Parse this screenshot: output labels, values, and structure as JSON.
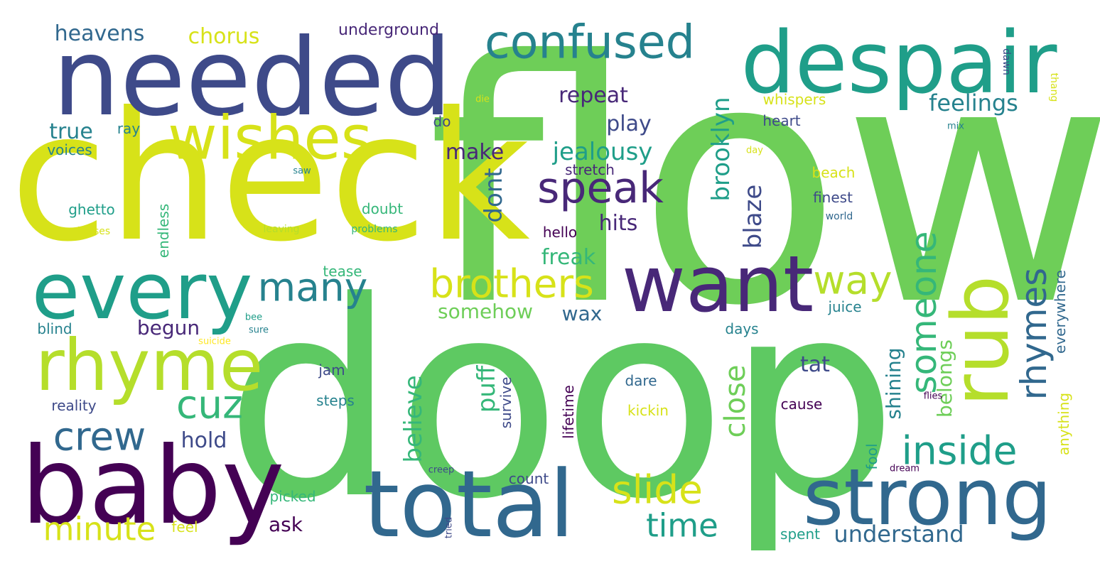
{
  "words": [
    {
      "text": "flow",
      "color": "#6ece58"
    },
    {
      "text": "doop",
      "color": "#5ec962"
    },
    {
      "text": "check",
      "color": "#d7e219"
    },
    {
      "text": "needed",
      "color": "#3e4a89"
    },
    {
      "text": "despair",
      "color": "#1f9e89"
    },
    {
      "text": "baby",
      "color": "#440154"
    },
    {
      "text": "total",
      "color": "#31688e"
    },
    {
      "text": "strong",
      "color": "#31688e"
    },
    {
      "text": "want",
      "color": "#482878"
    },
    {
      "text": "every",
      "color": "#1f9e89"
    },
    {
      "text": "rhyme",
      "color": "#b5de2b"
    },
    {
      "text": "wishes",
      "color": "#d7e219"
    },
    {
      "text": "rub",
      "color": "#b5de2b"
    },
    {
      "text": "confused",
      "color": "#26828e"
    },
    {
      "text": "speak",
      "color": "#482878"
    },
    {
      "text": "brothers",
      "color": "#d7e219"
    },
    {
      "text": "many",
      "color": "#26828e"
    },
    {
      "text": "cuz",
      "color": "#35b779"
    },
    {
      "text": "crew",
      "color": "#31688e"
    },
    {
      "text": "minute",
      "color": "#d7e219"
    },
    {
      "text": "slide",
      "color": "#d7e219"
    },
    {
      "text": "time",
      "color": "#1f9e89"
    },
    {
      "text": "inside",
      "color": "#1f9e89"
    },
    {
      "text": "way",
      "color": "#b5de2b"
    },
    {
      "text": "someone",
      "color": "#35b779"
    },
    {
      "text": "rhymes",
      "color": "#31688e"
    },
    {
      "text": "close",
      "color": "#6ece58"
    },
    {
      "text": "understand",
      "color": "#31688e"
    },
    {
      "text": "heavens",
      "color": "#31688e"
    },
    {
      "text": "chorus",
      "color": "#d7e219"
    },
    {
      "text": "underground",
      "color": "#482878"
    },
    {
      "text": "feelings",
      "color": "#26828e"
    },
    {
      "text": "repeat",
      "color": "#482878"
    },
    {
      "text": "play",
      "color": "#3e4a89"
    },
    {
      "text": "true",
      "color": "#26828e"
    },
    {
      "text": "ray",
      "color": "#26828e"
    },
    {
      "text": "voices",
      "color": "#26828e"
    },
    {
      "text": "jealousy",
      "color": "#1f9e89"
    },
    {
      "text": "make",
      "color": "#482878"
    },
    {
      "text": "stretch",
      "color": "#482878"
    },
    {
      "text": "hits",
      "color": "#482878"
    },
    {
      "text": "dont",
      "color": "#31688e"
    },
    {
      "text": "brooklyn",
      "color": "#1f9e89"
    },
    {
      "text": "blaze",
      "color": "#3e4a89"
    },
    {
      "text": "freak",
      "color": "#35b779"
    },
    {
      "text": "hello",
      "color": "#440154"
    },
    {
      "text": "doubt",
      "color": "#35b779"
    },
    {
      "text": "ghetto",
      "color": "#1f9e89"
    },
    {
      "text": "horses",
      "color": "#d7e219"
    },
    {
      "text": "leaving",
      "color": "#b5de2b"
    },
    {
      "text": "problems",
      "color": "#35b779"
    },
    {
      "text": "endless",
      "color": "#35b779"
    },
    {
      "text": "somehow",
      "color": "#6ece58"
    },
    {
      "text": "wax",
      "color": "#31688e"
    },
    {
      "text": "begun",
      "color": "#482878"
    },
    {
      "text": "tease",
      "color": "#35b779"
    },
    {
      "text": "blind",
      "color": "#26828e"
    },
    {
      "text": "bee",
      "color": "#1f9e89"
    },
    {
      "text": "sure",
      "color": "#26828e"
    },
    {
      "text": "suicide",
      "color": "#fde725"
    },
    {
      "text": "hold",
      "color": "#3e4a89"
    },
    {
      "text": "reality",
      "color": "#3e4a89"
    },
    {
      "text": "jam",
      "color": "#3e4a89"
    },
    {
      "text": "steps",
      "color": "#26828e"
    },
    {
      "text": "believe",
      "color": "#35b779"
    },
    {
      "text": "puff",
      "color": "#35b779"
    },
    {
      "text": "survive",
      "color": "#3e4a89"
    },
    {
      "text": "lifetime",
      "color": "#440154"
    },
    {
      "text": "dare",
      "color": "#31688e"
    },
    {
      "text": "kickin",
      "color": "#d7e219"
    },
    {
      "text": "count",
      "color": "#3e4a89"
    },
    {
      "text": "picked",
      "color": "#35b779"
    },
    {
      "text": "ask",
      "color": "#440154"
    },
    {
      "text": "feel",
      "color": "#d7e219"
    },
    {
      "text": "creep",
      "color": "#3e4a89"
    },
    {
      "text": "tried",
      "color": "#3e4a89"
    },
    {
      "text": "die",
      "color": "#d7e219"
    },
    {
      "text": "do",
      "color": "#3e4a89"
    },
    {
      "text": "saw",
      "color": "#26828e"
    },
    {
      "text": "whispers",
      "color": "#d7e219"
    },
    {
      "text": "heart",
      "color": "#3e4a89"
    },
    {
      "text": "beach",
      "color": "#d7e219"
    },
    {
      "text": "finest",
      "color": "#3e4a89"
    },
    {
      "text": "world",
      "color": "#31688e"
    },
    {
      "text": "day",
      "color": "#d7e219"
    },
    {
      "text": "mix",
      "color": "#26828e"
    },
    {
      "text": "dawn",
      "color": "#3e4a89"
    },
    {
      "text": "thang",
      "color": "#d7e219"
    },
    {
      "text": "juice",
      "color": "#26828e"
    },
    {
      "text": "days",
      "color": "#26828e"
    },
    {
      "text": "shining",
      "color": "#26828e"
    },
    {
      "text": "belongs",
      "color": "#6ece58"
    },
    {
      "text": "tat",
      "color": "#3e4a89"
    },
    {
      "text": "cause",
      "color": "#440154"
    },
    {
      "text": "everywhere",
      "color": "#31688e"
    },
    {
      "text": "anything",
      "color": "#d7e219"
    },
    {
      "text": "fool",
      "color": "#1f9e89"
    },
    {
      "text": "dream",
      "color": "#440154"
    },
    {
      "text": "flies",
      "color": "#440154"
    },
    {
      "text": "spent",
      "color": "#1f9e89"
    }
  ]
}
